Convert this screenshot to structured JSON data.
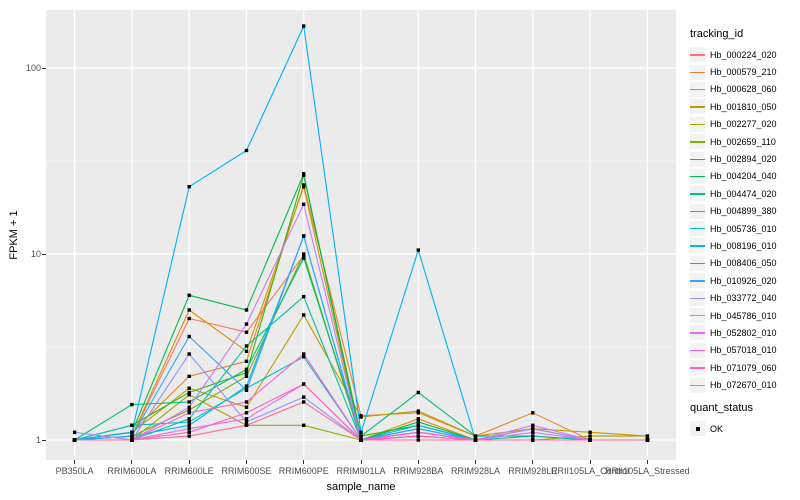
{
  "figure": {
    "background": "#FFFFFF",
    "panel_background": "#EBEBEB",
    "grid_color": "#FFFFFF",
    "point_color": "#000000",
    "axis_text_color": "#4D4D4D"
  },
  "axes": {
    "y_title": "FPKM + 1",
    "x_title": "sample_name",
    "y_tick_labels": [
      "100",
      "10",
      "1"
    ]
  },
  "legend": {
    "tracking": {
      "title": "tracking_id"
    },
    "quant": {
      "title": "quant_status",
      "status_label": "OK"
    }
  },
  "chart_data": {
    "type": "line",
    "title": "",
    "xlabel": "sample_name",
    "ylabel": "FPKM + 1",
    "y_scale": "log10",
    "y_major_ticks": [
      1,
      10,
      100
    ],
    "y_minor_ticks": [
      3.162,
      31.62
    ],
    "ylim": [
      0.78,
      219
    ],
    "legend_title": "tracking_id",
    "quant_status": "OK",
    "point_marker": "black-square",
    "grid": true,
    "legend_position": "right",
    "categories": [
      "PB350LA",
      "RRIM600LA",
      "RRIM600LE",
      "RRIM600SE",
      "RRIM600PE",
      "RRIM901LA",
      "RRIM928BA",
      "RRIM928LA",
      "RRIM928LE",
      "RRII105LA_Control",
      "RRII105LA_Stressed"
    ],
    "series": [
      {
        "name": "Hb_000224_020",
        "color": "#F8766D",
        "values": [
          1.0,
          1.05,
          4.5,
          3.8,
          9.8,
          1.0,
          1.1,
          1.0,
          1.0,
          1.0,
          1.0
        ]
      },
      {
        "name": "Hb_000579_210",
        "color": "#EA8331",
        "values": [
          1.0,
          1.1,
          2.2,
          2.65,
          23.5,
          1.35,
          1.4,
          1.05,
          1.4,
          1.0,
          1.0
        ]
      },
      {
        "name": "Hb_000628_060",
        "color": "#D89000",
        "values": [
          1.0,
          1.05,
          5.0,
          3.0,
          23.0,
          1.0,
          1.3,
          1.0,
          1.15,
          1.0,
          1.0
        ]
      },
      {
        "name": "Hb_001810_050",
        "color": "#C09B00",
        "values": [
          1.0,
          1.1,
          1.9,
          1.5,
          4.7,
          1.33,
          1.43,
          1.05,
          1.15,
          1.1,
          1.05
        ]
      },
      {
        "name": "Hb_002277_020",
        "color": "#A3A500",
        "values": [
          1.0,
          1.0,
          1.75,
          1.2,
          1.2,
          1.0,
          1.05,
          1.0,
          1.0,
          1.05,
          1.05
        ]
      },
      {
        "name": "Hb_002659_110",
        "color": "#7CAE00",
        "values": [
          1.0,
          1.05,
          1.45,
          2.2,
          10.0,
          1.0,
          1.1,
          1.0,
          1.0,
          1.0,
          1.0
        ]
      },
      {
        "name": "Hb_002894_020",
        "color": "#39B600",
        "values": [
          1.0,
          1.2,
          1.8,
          2.3,
          26.5,
          1.05,
          1.2,
          1.0,
          1.0,
          1.0,
          1.0
        ]
      },
      {
        "name": "Hb_004204_040",
        "color": "#00BB4E",
        "values": [
          1.0,
          1.1,
          6.0,
          5.0,
          27.0,
          1.0,
          1.25,
          1.0,
          1.0,
          1.0,
          1.0
        ]
      },
      {
        "name": "Hb_004474_020",
        "color": "#00BF7D",
        "values": [
          1.0,
          1.55,
          1.6,
          2.4,
          9.5,
          1.05,
          1.8,
          1.05,
          1.05,
          1.0,
          1.0
        ]
      },
      {
        "name": "Hb_004899_380",
        "color": "#00C1A3",
        "values": [
          1.0,
          1.0,
          1.3,
          3.2,
          5.9,
          1.0,
          1.1,
          1.0,
          1.05,
          1.0,
          1.0
        ]
      },
      {
        "name": "Hb_005736_010",
        "color": "#00BFC4",
        "values": [
          1.0,
          1.2,
          1.25,
          1.9,
          2.8,
          1.0,
          1.15,
          1.0,
          1.0,
          1.0,
          1.0
        ]
      },
      {
        "name": "Hb_008196_010",
        "color": "#00BAE0",
        "values": [
          1.0,
          1.05,
          1.2,
          1.95,
          12.5,
          1.0,
          1.2,
          1.0,
          1.0,
          1.0,
          1.0
        ]
      },
      {
        "name": "Hb_008406_050",
        "color": "#00B0F6",
        "values": [
          1.0,
          1.1,
          23.0,
          36.0,
          168.0,
          1.1,
          10.5,
          1.0,
          1.0,
          1.0,
          1.0
        ]
      },
      {
        "name": "Hb_010926_020",
        "color": "#35A2FF",
        "values": [
          1.0,
          1.05,
          3.6,
          1.85,
          12.5,
          1.0,
          1.15,
          1.0,
          1.0,
          1.0,
          1.0
        ]
      },
      {
        "name": "Hb_033772_040",
        "color": "#9590FF",
        "values": [
          1.1,
          1.0,
          2.9,
          1.25,
          1.7,
          1.0,
          1.05,
          1.0,
          1.15,
          1.0,
          1.0
        ]
      },
      {
        "name": "Hb_045786_010",
        "color": "#C77CFF",
        "values": [
          1.0,
          1.0,
          1.5,
          4.2,
          18.5,
          1.0,
          1.1,
          1.0,
          1.2,
          1.0,
          1.0
        ]
      },
      {
        "name": "Hb_052802_010",
        "color": "#E76BF3",
        "values": [
          1.0,
          1.0,
          1.15,
          1.3,
          2.0,
          1.0,
          1.05,
          1.0,
          1.1,
          1.0,
          1.0
        ]
      },
      {
        "name": "Hb_057018_010",
        "color": "#FA62DB",
        "values": [
          1.0,
          1.0,
          1.4,
          1.6,
          2.9,
          1.0,
          1.1,
          1.0,
          1.0,
          1.0,
          1.0
        ]
      },
      {
        "name": "Hb_071079_060",
        "color": "#FF62BC",
        "values": [
          1.0,
          1.0,
          1.1,
          1.4,
          2.0,
          1.0,
          1.05,
          1.0,
          1.0,
          1.0,
          1.0
        ]
      },
      {
        "name": "Hb_072670_010",
        "color": "#FF6A98",
        "values": [
          1.0,
          1.0,
          1.05,
          1.2,
          1.6,
          1.0,
          1.0,
          1.0,
          1.0,
          1.0,
          1.0
        ]
      }
    ]
  }
}
